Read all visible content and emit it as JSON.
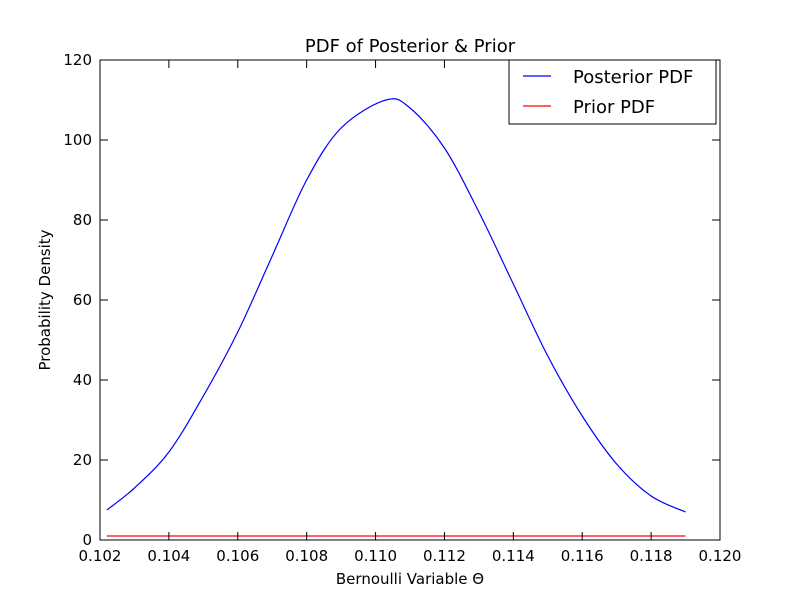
{
  "chart_data": {
    "type": "line",
    "title": "PDF of Posterior & Prior",
    "xlabel": "Bernoulli Variable Θ",
    "ylabel": "Probability Density",
    "xlim": [
      0.102,
      0.12
    ],
    "ylim": [
      0,
      120
    ],
    "xticks": [
      "0.102",
      "0.104",
      "0.106",
      "0.108",
      "0.110",
      "0.112",
      "0.114",
      "0.116",
      "0.118",
      "0.120"
    ],
    "yticks": [
      "0",
      "20",
      "40",
      "60",
      "80",
      "100",
      "120"
    ],
    "grid": false,
    "legend_position": "top-right",
    "series": [
      {
        "name": "Posterior PDF",
        "color": "#0000ff",
        "x": [
          0.1022,
          0.103,
          0.104,
          0.105,
          0.106,
          0.107,
          0.108,
          0.109,
          0.1103,
          0.111,
          0.112,
          0.113,
          0.114,
          0.115,
          0.116,
          0.117,
          0.118,
          0.119
        ],
        "y": [
          7.5,
          13,
          22,
          36,
          52,
          71,
          90,
          103,
          110,
          108,
          98,
          82,
          64,
          46,
          31,
          19,
          11,
          7
        ]
      },
      {
        "name": "Prior PDF",
        "color": "#ff0000",
        "x": [
          0.1022,
          0.119
        ],
        "y": [
          1,
          1
        ]
      }
    ]
  }
}
